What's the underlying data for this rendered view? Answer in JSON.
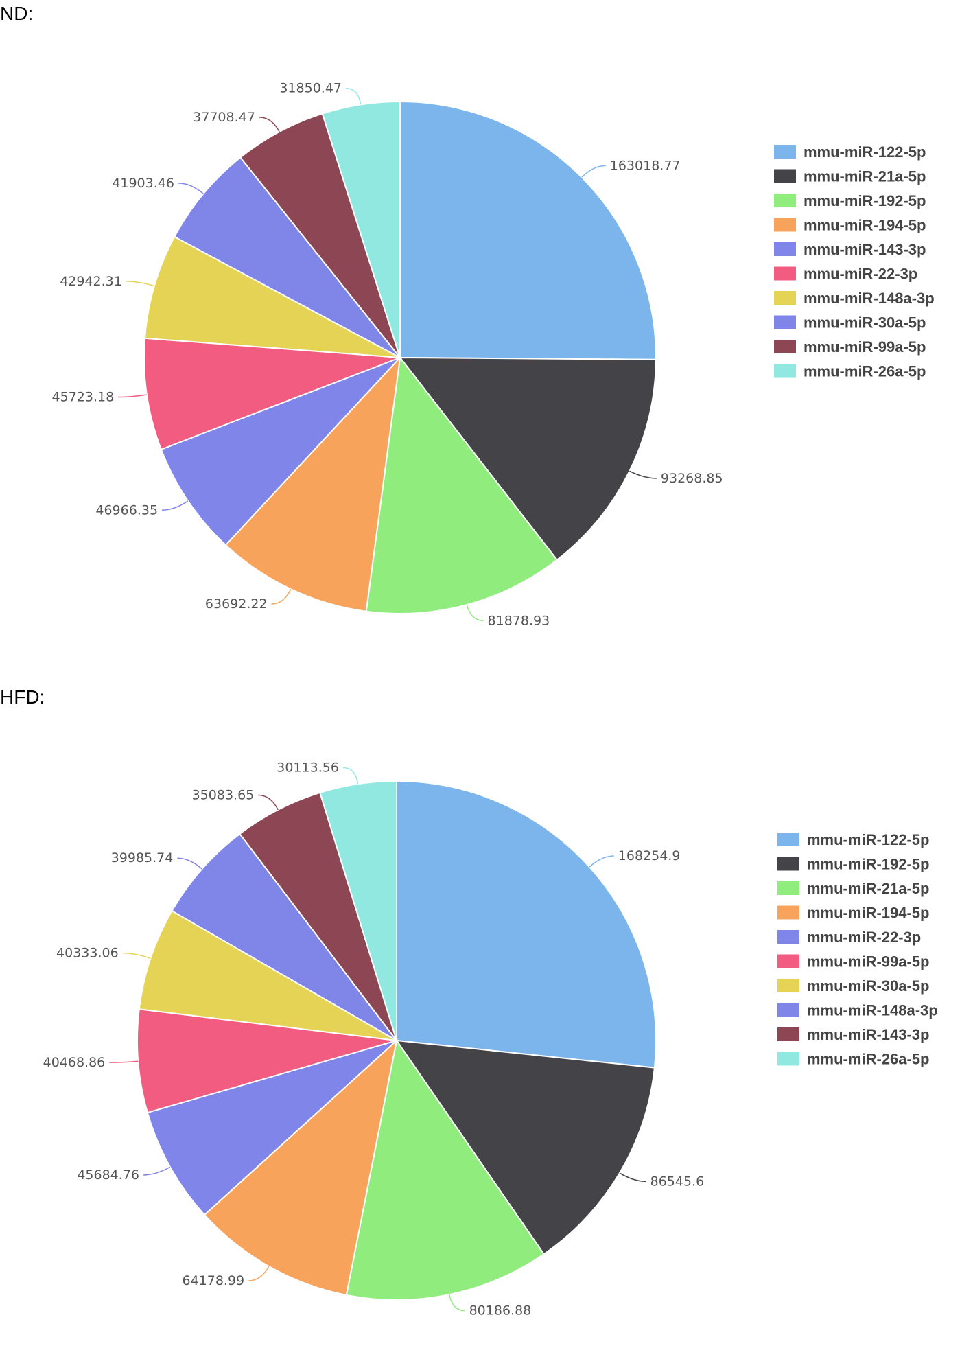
{
  "colors": [
    "#7cb5ec",
    "#434348",
    "#90ed7d",
    "#f7a35c",
    "#8085e9",
    "#f15c80",
    "#e4d354",
    "#8085e8",
    "#8d4653",
    "#91e8e1"
  ],
  "chart_data": [
    {
      "type": "pie",
      "panel_label": "ND:",
      "legend_position": "right",
      "categories": [
        "mmu-miR-122-5p",
        "mmu-miR-21a-5p",
        "mmu-miR-192-5p",
        "mmu-miR-194-5p",
        "mmu-miR-143-3p",
        "mmu-miR-22-3p",
        "mmu-miR-148a-3p",
        "mmu-miR-30a-5p",
        "mmu-miR-99a-5p",
        "mmu-miR-26a-5p"
      ],
      "values": [
        163018.77,
        93268.85,
        81878.93,
        63692.22,
        46966.35,
        45723.18,
        42942.31,
        41903.46,
        37708.47,
        31850.47
      ],
      "value_labels": [
        "163018.77",
        "93268.85",
        "81878.93",
        "63692.22",
        "46966.35",
        "45723.18",
        "42942.31",
        "41903.46",
        "37708.47",
        "31850.47"
      ]
    },
    {
      "type": "pie",
      "panel_label": "HFD:",
      "legend_position": "right",
      "categories": [
        "mmu-miR-122-5p",
        "mmu-miR-192-5p",
        "mmu-miR-21a-5p",
        "mmu-miR-194-5p",
        "mmu-miR-22-3p",
        "mmu-miR-99a-5p",
        "mmu-miR-30a-5p",
        "mmu-miR-148a-3p",
        "mmu-miR-143-3p",
        "mmu-miR-26a-5p"
      ],
      "values": [
        168254.9,
        86545.6,
        80186.88,
        64178.99,
        45684.76,
        40468.86,
        40333.06,
        39985.74,
        35083.65,
        30113.56
      ],
      "value_labels": [
        "168254.9",
        "86545.6",
        "80186.88",
        "64178.99",
        "45684.76",
        "40468.86",
        "40333.06",
        "39985.74",
        "35083.65",
        "30113.56"
      ]
    }
  ]
}
